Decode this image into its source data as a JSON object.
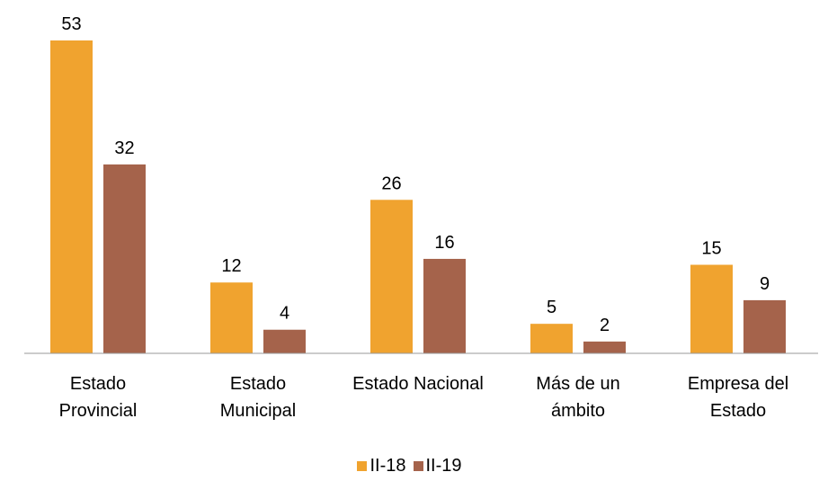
{
  "chart_data": {
    "type": "bar",
    "categories": [
      "Estado Provincial",
      "Estado Municipal",
      "Estado Nacional",
      "Más de un ámbito",
      "Empresa del Estado"
    ],
    "series": [
      {
        "name": "II-18",
        "color": "#F0A32F",
        "values": [
          53,
          12,
          26,
          5,
          15
        ]
      },
      {
        "name": "II-19",
        "color": "#A5634B",
        "values": [
          32,
          4,
          16,
          2,
          9
        ]
      }
    ],
    "legend": "bottom"
  }
}
